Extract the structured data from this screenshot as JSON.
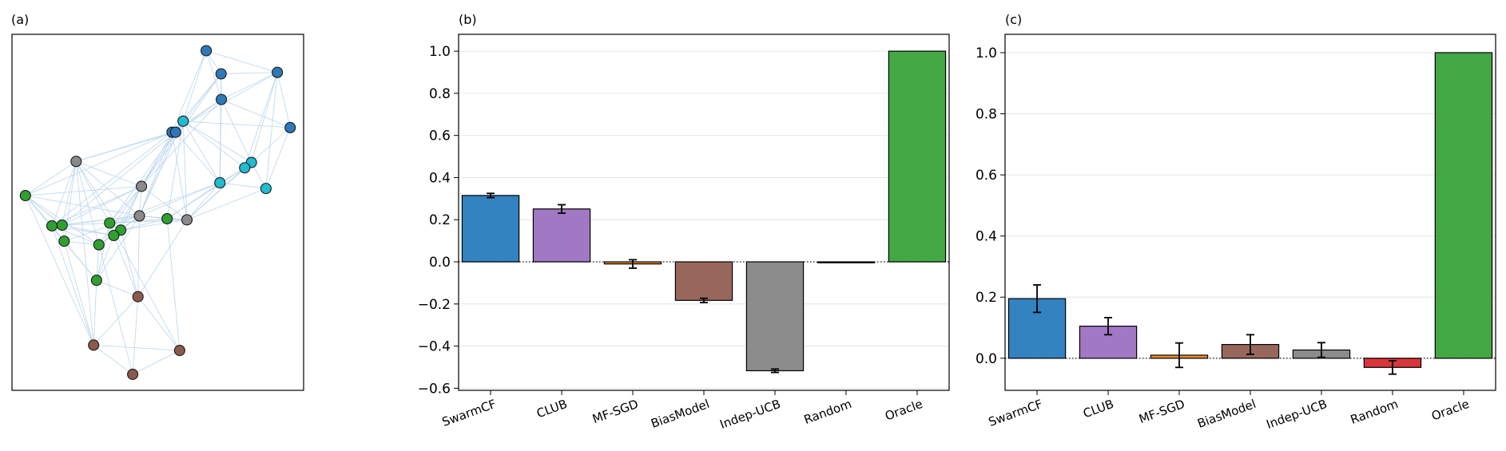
{
  "panel_labels": {
    "a": "(a)",
    "b": "(b)",
    "c": "(c)"
  },
  "colors": {
    "SwarmCF": "#3283c0",
    "CLUB": "#a078c4",
    "MF-SGD": "#f28c28",
    "BiasModel": "#98675c",
    "Indep-UCB": "#8c8c8c",
    "Random": "#d9363b",
    "Oracle": "#43a843",
    "edge": "#b9d4ec",
    "grid": "#e6e6e6"
  },
  "chart_data": [
    {
      "type": "network",
      "panel": "(a)",
      "node_groups": [
        "blue",
        "cyan",
        "gray",
        "green",
        "brown"
      ],
      "group_colors": {
        "blue": "#2e78b8",
        "cyan": "#20bcd0",
        "gray": "#8a8a8a",
        "green": "#2fa02f",
        "brown": "#8b5a4c"
      },
      "nodes": [
        {
          "g": "blue",
          "x": 0.666,
          "y": 0.954
        },
        {
          "g": "blue",
          "x": 0.717,
          "y": 0.889
        },
        {
          "g": "blue",
          "x": 0.91,
          "y": 0.893
        },
        {
          "g": "blue",
          "x": 0.718,
          "y": 0.817
        },
        {
          "g": "blue",
          "x": 0.954,
          "y": 0.738
        },
        {
          "g": "blue",
          "x": 0.549,
          "y": 0.725
        },
        {
          "g": "blue",
          "x": 0.561,
          "y": 0.725
        },
        {
          "g": "cyan",
          "x": 0.587,
          "y": 0.756
        },
        {
          "g": "cyan",
          "x": 0.821,
          "y": 0.64
        },
        {
          "g": "cyan",
          "x": 0.798,
          "y": 0.625
        },
        {
          "g": "cyan",
          "x": 0.713,
          "y": 0.583
        },
        {
          "g": "cyan",
          "x": 0.871,
          "y": 0.567
        },
        {
          "g": "gray",
          "x": 0.22,
          "y": 0.643
        },
        {
          "g": "gray",
          "x": 0.444,
          "y": 0.573
        },
        {
          "g": "gray",
          "x": 0.437,
          "y": 0.49
        },
        {
          "g": "gray",
          "x": 0.6,
          "y": 0.479
        },
        {
          "g": "green",
          "x": 0.046,
          "y": 0.547
        },
        {
          "g": "green",
          "x": 0.137,
          "y": 0.462
        },
        {
          "g": "green",
          "x": 0.172,
          "y": 0.464
        },
        {
          "g": "green",
          "x": 0.179,
          "y": 0.419
        },
        {
          "g": "green",
          "x": 0.335,
          "y": 0.47
        },
        {
          "g": "green",
          "x": 0.373,
          "y": 0.45
        },
        {
          "g": "green",
          "x": 0.349,
          "y": 0.435
        },
        {
          "g": "green",
          "x": 0.298,
          "y": 0.409
        },
        {
          "g": "green",
          "x": 0.532,
          "y": 0.482
        },
        {
          "g": "green",
          "x": 0.29,
          "y": 0.309
        },
        {
          "g": "brown",
          "x": 0.432,
          "y": 0.263
        },
        {
          "g": "brown",
          "x": 0.28,
          "y": 0.127
        },
        {
          "g": "brown",
          "x": 0.575,
          "y": 0.112
        },
        {
          "g": "brown",
          "x": 0.414,
          "y": 0.045
        }
      ],
      "edges": [
        [
          0,
          1
        ],
        [
          0,
          3
        ],
        [
          0,
          2
        ],
        [
          1,
          3
        ],
        [
          1,
          2
        ],
        [
          2,
          4
        ],
        [
          3,
          4
        ],
        [
          3,
          6
        ],
        [
          3,
          5
        ],
        [
          1,
          6
        ],
        [
          1,
          5
        ],
        [
          2,
          3
        ],
        [
          2,
          5
        ],
        [
          2,
          9
        ],
        [
          4,
          8
        ],
        [
          4,
          11
        ],
        [
          4,
          7
        ],
        [
          5,
          7
        ],
        [
          6,
          7
        ],
        [
          7,
          8
        ],
        [
          7,
          10
        ],
        [
          7,
          9
        ],
        [
          8,
          11
        ],
        [
          9,
          10
        ],
        [
          10,
          11
        ],
        [
          5,
          13
        ],
        [
          6,
          13
        ],
        [
          7,
          13
        ],
        [
          5,
          12
        ],
        [
          6,
          12
        ],
        [
          12,
          13
        ],
        [
          12,
          14
        ],
        [
          13,
          14
        ],
        [
          14,
          15
        ],
        [
          13,
          15
        ],
        [
          15,
          10
        ],
        [
          15,
          9
        ],
        [
          5,
          15
        ],
        [
          6,
          10
        ],
        [
          3,
          10
        ],
        [
          3,
          8
        ],
        [
          2,
          8
        ],
        [
          2,
          11
        ],
        [
          1,
          10
        ],
        [
          0,
          7
        ],
        [
          0,
          5
        ],
        [
          12,
          16
        ],
        [
          12,
          17
        ],
        [
          12,
          18
        ],
        [
          12,
          21
        ],
        [
          12,
          20
        ],
        [
          12,
          23
        ],
        [
          13,
          16
        ],
        [
          13,
          17
        ],
        [
          13,
          18
        ],
        [
          13,
          22
        ],
        [
          13,
          21
        ],
        [
          13,
          23
        ],
        [
          13,
          20
        ],
        [
          14,
          16
        ],
        [
          14,
          17
        ],
        [
          14,
          18
        ],
        [
          14,
          19
        ],
        [
          14,
          20
        ],
        [
          14,
          21
        ],
        [
          14,
          22
        ],
        [
          14,
          23
        ],
        [
          14,
          24
        ],
        [
          15,
          24
        ],
        [
          15,
          20
        ],
        [
          15,
          21
        ],
        [
          16,
          17
        ],
        [
          16,
          18
        ],
        [
          16,
          19
        ],
        [
          16,
          23
        ],
        [
          16,
          25
        ],
        [
          17,
          18
        ],
        [
          17,
          19
        ],
        [
          17,
          23
        ],
        [
          17,
          22
        ],
        [
          18,
          19
        ],
        [
          18,
          22
        ],
        [
          19,
          23
        ],
        [
          19,
          25
        ],
        [
          20,
          21
        ],
        [
          20,
          22
        ],
        [
          20,
          24
        ],
        [
          21,
          22
        ],
        [
          22,
          23
        ],
        [
          23,
          25
        ],
        [
          24,
          21
        ],
        [
          24,
          9
        ],
        [
          24,
          10
        ],
        [
          24,
          7
        ],
        [
          20,
          10
        ],
        [
          21,
          13
        ],
        [
          5,
          17
        ],
        [
          6,
          18
        ],
        [
          5,
          16
        ],
        [
          7,
          20
        ],
        [
          3,
          13
        ],
        [
          1,
          13
        ],
        [
          9,
          15
        ],
        [
          8,
          15
        ],
        [
          11,
          15
        ],
        [
          7,
          15
        ],
        [
          5,
          14
        ],
        [
          6,
          14
        ],
        [
          7,
          14
        ],
        [
          10,
          14
        ],
        [
          25,
          26
        ],
        [
          25,
          27
        ],
        [
          25,
          22
        ],
        [
          25,
          20
        ],
        [
          26,
          27
        ],
        [
          26,
          28
        ],
        [
          26,
          29
        ],
        [
          27,
          29
        ],
        [
          28,
          29
        ],
        [
          27,
          28
        ],
        [
          26,
          22
        ],
        [
          26,
          21
        ],
        [
          26,
          14
        ],
        [
          27,
          17
        ],
        [
          27,
          19
        ],
        [
          27,
          16
        ],
        [
          28,
          24
        ],
        [
          28,
          20
        ],
        [
          29,
          23
        ],
        [
          26,
          15
        ],
        [
          25,
          14
        ],
        [
          27,
          12
        ],
        [
          19,
          12
        ],
        [
          18,
          16
        ],
        [
          17,
          20
        ],
        [
          23,
          21
        ]
      ]
    },
    {
      "type": "bar",
      "panel": "(b)",
      "categories": [
        "SwarmCF",
        "CLUB",
        "MF-SGD",
        "BiasModel",
        "Indep-UCB",
        "Random",
        "Oracle"
      ],
      "values": [
        0.315,
        0.251,
        -0.01,
        -0.183,
        -0.517,
        0.0,
        1.0
      ],
      "errors": [
        0.01,
        0.02,
        0.02,
        0.01,
        0.008,
        0.0,
        0.0
      ],
      "ylim": [
        -0.61,
        1.08
      ],
      "yticks": [
        -0.6,
        -0.4,
        -0.2,
        0.0,
        0.2,
        0.4,
        0.6,
        0.8,
        1.0
      ],
      "ytick_labels": [
        "−0.6",
        "−0.4",
        "−0.2",
        "0.0",
        "0.2",
        "0.4",
        "0.6",
        "0.8",
        "1.0"
      ],
      "grid": true,
      "zero_line": "dotted"
    },
    {
      "type": "bar",
      "panel": "(c)",
      "categories": [
        "SwarmCF",
        "CLUB",
        "MF-SGD",
        "BiasModel",
        "Indep-UCB",
        "Random",
        "Oracle"
      ],
      "values": [
        0.195,
        0.105,
        0.01,
        0.045,
        0.027,
        -0.03,
        1.0
      ],
      "errors": [
        0.045,
        0.028,
        0.04,
        0.032,
        0.024,
        0.022,
        0.0
      ],
      "ylim": [
        -0.105,
        1.06
      ],
      "yticks": [
        0.0,
        0.2,
        0.4,
        0.6,
        0.8,
        1.0
      ],
      "ytick_labels": [
        "0.0",
        "0.2",
        "0.4",
        "0.6",
        "0.8",
        "1.0"
      ],
      "grid": true,
      "zero_line": "dotted"
    }
  ]
}
